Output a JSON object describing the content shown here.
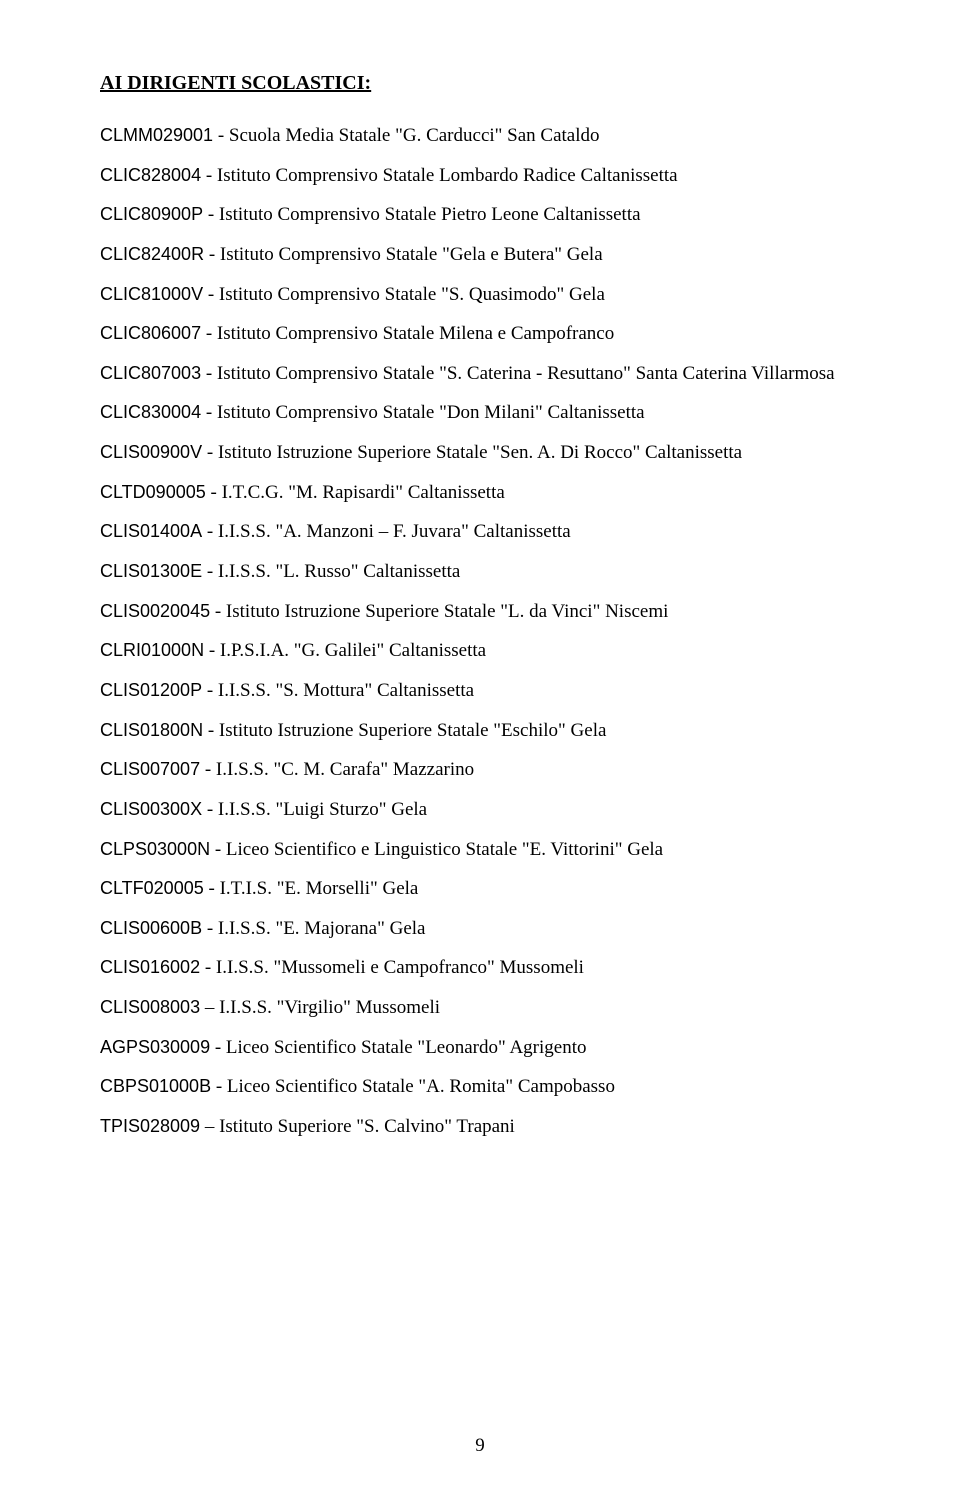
{
  "heading": "AI DIRIGENTI SCOLASTICI:",
  "page_number": "9",
  "entries": [
    {
      "code": "CLMM029001",
      "sep": " - ",
      "desc": "Scuola Media Statale \"G. Carducci\" San Cataldo"
    },
    {
      "code": "CLIC828004",
      "sep": " - ",
      "desc": "Istituto Comprensivo Statale Lombardo Radice Caltanissetta"
    },
    {
      "code": "CLIC80900P",
      "sep": " - ",
      "desc": "Istituto Comprensivo Statale Pietro Leone Caltanissetta"
    },
    {
      "code": "CLIC82400R",
      "sep": " - ",
      "desc": "Istituto Comprensivo Statale \"Gela e Butera\" Gela"
    },
    {
      "code": "CLIC81000V",
      "sep": " - ",
      "desc": "Istituto Comprensivo Statale \"S. Quasimodo\" Gela"
    },
    {
      "code": "CLIC806007",
      "sep": " - ",
      "desc": "Istituto Comprensivo Statale Milena e Campofranco"
    },
    {
      "code": "CLIC807003",
      "sep": " - ",
      "desc": "Istituto Comprensivo Statale \"S. Caterina - Resuttano\" Santa Caterina Villarmosa"
    },
    {
      "code": "CLIC830004",
      "sep": " - ",
      "desc": "Istituto Comprensivo Statale \"Don Milani\" Caltanissetta"
    },
    {
      "code": "CLIS00900V",
      "sep": " - ",
      "desc": "Istituto Istruzione Superiore Statale \"Sen. A. Di Rocco\" Caltanissetta"
    },
    {
      "code": "CLTD090005",
      "sep": " - ",
      "desc": "I.T.C.G. \"M. Rapisardi\" Caltanissetta"
    },
    {
      "code": "CLIS01400A",
      "sep": " - ",
      "desc": "I.I.S.S. \"A. Manzoni – F. Juvara\" Caltanissetta"
    },
    {
      "code": "CLIS01300E",
      "sep": " - ",
      "desc": "I.I.S.S. \"L. Russo\" Caltanissetta"
    },
    {
      "code": "CLIS0020045",
      "sep": " - ",
      "desc": "Istituto Istruzione Superiore Statale \"L. da Vinci\" Niscemi"
    },
    {
      "code": "CLRI01000N",
      "sep": " - ",
      "desc": "I.P.S.I.A. \"G. Galilei\" Caltanissetta"
    },
    {
      "code": "CLIS01200P",
      "sep": " - ",
      "desc": "I.I.S.S. \"S. Mottura\" Caltanissetta"
    },
    {
      "code": "CLIS01800N",
      "sep": " - ",
      "desc": "Istituto Istruzione Superiore Statale \"Eschilo\" Gela"
    },
    {
      "code": "CLIS007007",
      "sep": " - ",
      "desc": "I.I.S.S. \"C. M. Carafa\" Mazzarino"
    },
    {
      "code": "CLIS00300X",
      "sep": " - ",
      "desc": "I.I.S.S. \"Luigi Sturzo\" Gela"
    },
    {
      "code": "CLPS03000N",
      "sep": " - ",
      "desc": "Liceo Scientifico e Linguistico Statale \"E. Vittorini\" Gela"
    },
    {
      "code": "CLTF020005",
      "sep": " - ",
      "desc": "I.T.I.S. \"E. Morselli\" Gela"
    },
    {
      "code": "CLIS00600B",
      "sep": " - ",
      "desc": "I.I.S.S. \"E. Majorana\" Gela"
    },
    {
      "code": "CLIS016002",
      "sep": " - ",
      "desc": "I.I.S.S. \"Mussomeli e Campofranco\" Mussomeli"
    },
    {
      "code": "CLIS008003",
      "sep": " – ",
      "desc": "I.I.S.S. \"Virgilio\" Mussomeli"
    },
    {
      "code": "AGPS030009",
      "sep": " - ",
      "desc": "Liceo Scientifico Statale \"Leonardo\" Agrigento"
    },
    {
      "code": "CBPS01000B",
      "sep": " - ",
      "desc": "Liceo Scientifico Statale \"A. Romita\" Campobasso"
    },
    {
      "code": "TPIS028009",
      "sep": " – ",
      "desc": "Istituto Superiore \"S. Calvino\" Trapani"
    }
  ]
}
